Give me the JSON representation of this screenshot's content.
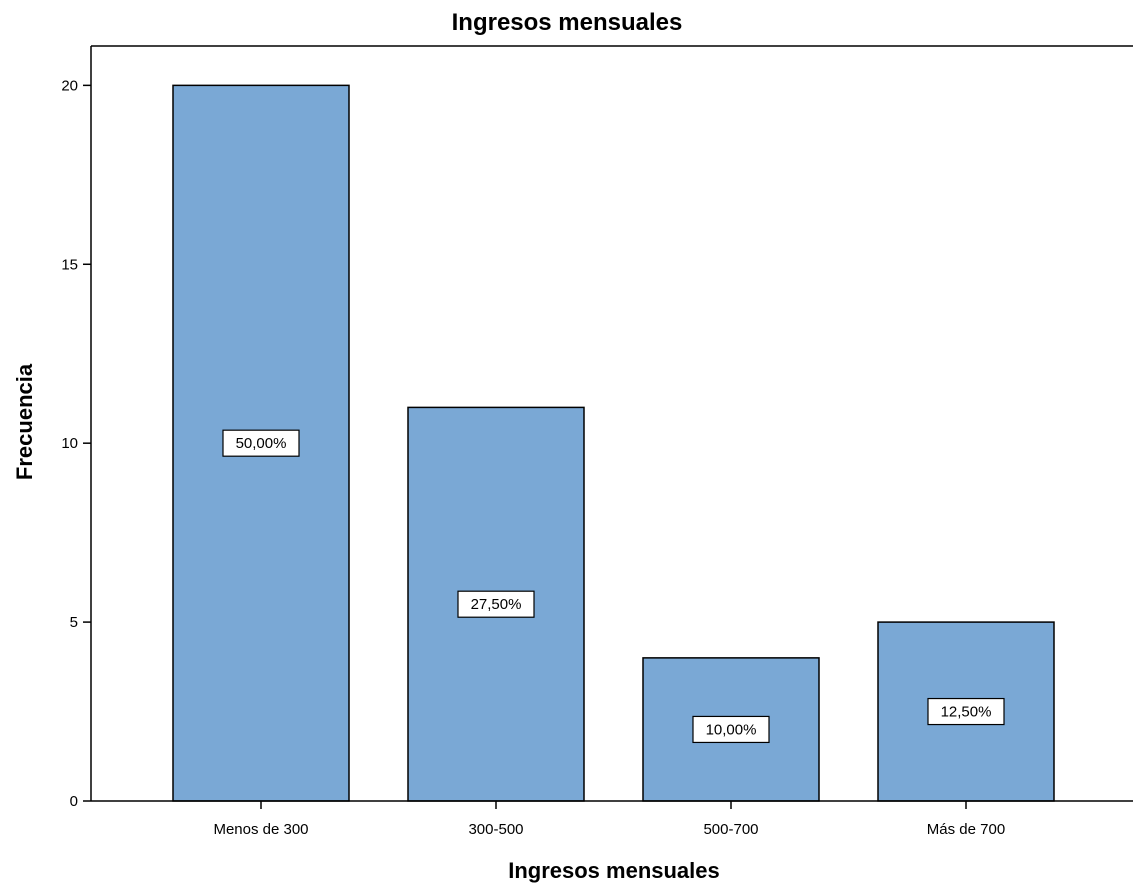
{
  "chart_data": {
    "type": "bar",
    "title": "Ingresos mensuales",
    "xlabel": "Ingresos mensuales",
    "ylabel": "Frecuencia",
    "categories": [
      "Menos de 300",
      "300-500",
      "500-700",
      "Más de 700"
    ],
    "values": [
      20,
      11,
      4,
      5
    ],
    "data_labels": [
      "50,00%",
      "27,50%",
      "10,00%",
      "12,50%"
    ],
    "yticks": [
      0,
      5,
      10,
      15,
      20
    ],
    "ylim": [
      0,
      21.1
    ],
    "grid": false,
    "bar_color": "#7aa8d5",
    "bar_edge_color": "#000000"
  }
}
